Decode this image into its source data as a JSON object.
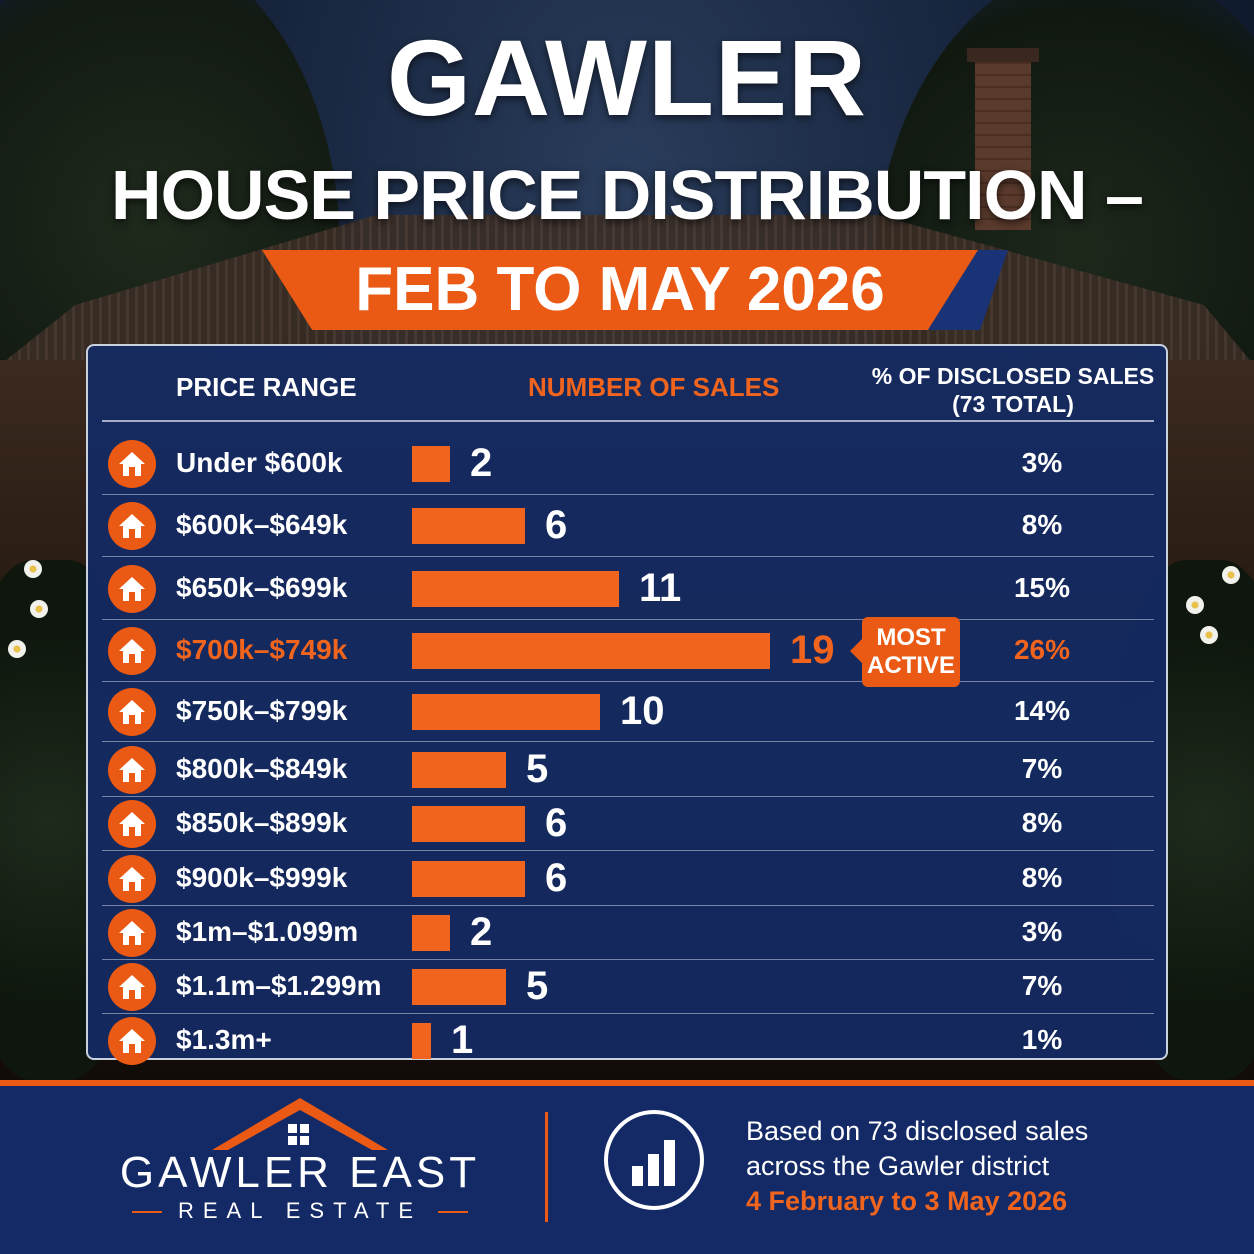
{
  "title": "GAWLER",
  "subtitle": "HOUSE PRICE DISTRIBUTION –",
  "period": "FEB TO MAY 2026",
  "headers": {
    "price_range": "PRICE RANGE",
    "number_of_sales": "NUMBER OF SALES",
    "pct_line1": "% OF DISCLOSED SALES",
    "pct_line2": "(73 TOTAL)"
  },
  "rows": [
    {
      "range": "Under $600k",
      "count": "2",
      "pct": "3%"
    },
    {
      "range": "$600k–$649k",
      "count": "6",
      "pct": "8%"
    },
    {
      "range": "$650k–$699k",
      "count": "11",
      "pct": "15%"
    },
    {
      "range": "$700k–$749k",
      "count": "19",
      "pct": "26%"
    },
    {
      "range": "$750k–$799k",
      "count": "10",
      "pct": "14%"
    },
    {
      "range": "$800k–$849k",
      "count": "5",
      "pct": "7%"
    },
    {
      "range": "$850k–$899k",
      "count": "6",
      "pct": "8%"
    },
    {
      "range": "$900k–$999k",
      "count": "6",
      "pct": "8%"
    },
    {
      "range": "$1m–$1.099m",
      "count": "2",
      "pct": "3%"
    },
    {
      "range": "$1.1m–$1.299m",
      "count": "5",
      "pct": "7%"
    },
    {
      "range": "$1.3m+",
      "count": "1",
      "pct": "1%"
    }
  ],
  "badge": {
    "line1": "MOST",
    "line2": "ACTIVE"
  },
  "footer": {
    "brand_line1": "GAWLER EAST",
    "brand_line2": "REAL ESTATE",
    "note_line1": "Based on 73 disclosed sales",
    "note_line2": "across the Gawler district",
    "note_line3": "4 February to 3 May 2026"
  },
  "colors": {
    "accent": "#ea5a14",
    "panel": "#142a62",
    "footer": "#142a66"
  },
  "icons": {
    "row": "house-icon",
    "footer_chart": "bar-chart-icon"
  },
  "chart_data": {
    "type": "bar",
    "orientation": "horizontal",
    "categories": [
      "Under $600k",
      "$600k–$649k",
      "$650k–$699k",
      "$700k–$749k",
      "$750k–$799k",
      "$800k–$849k",
      "$850k–$899k",
      "$900k–$999k",
      "$1m–$1.099m",
      "$1.1m–$1.299m",
      "$1.3m+"
    ],
    "values": [
      2,
      6,
      11,
      19,
      10,
      5,
      6,
      6,
      2,
      5,
      1
    ],
    "percentages": [
      3,
      8,
      15,
      26,
      14,
      7,
      8,
      8,
      3,
      7,
      1
    ],
    "highlight_index": 3,
    "xlim": [
      0,
      19
    ]
  }
}
